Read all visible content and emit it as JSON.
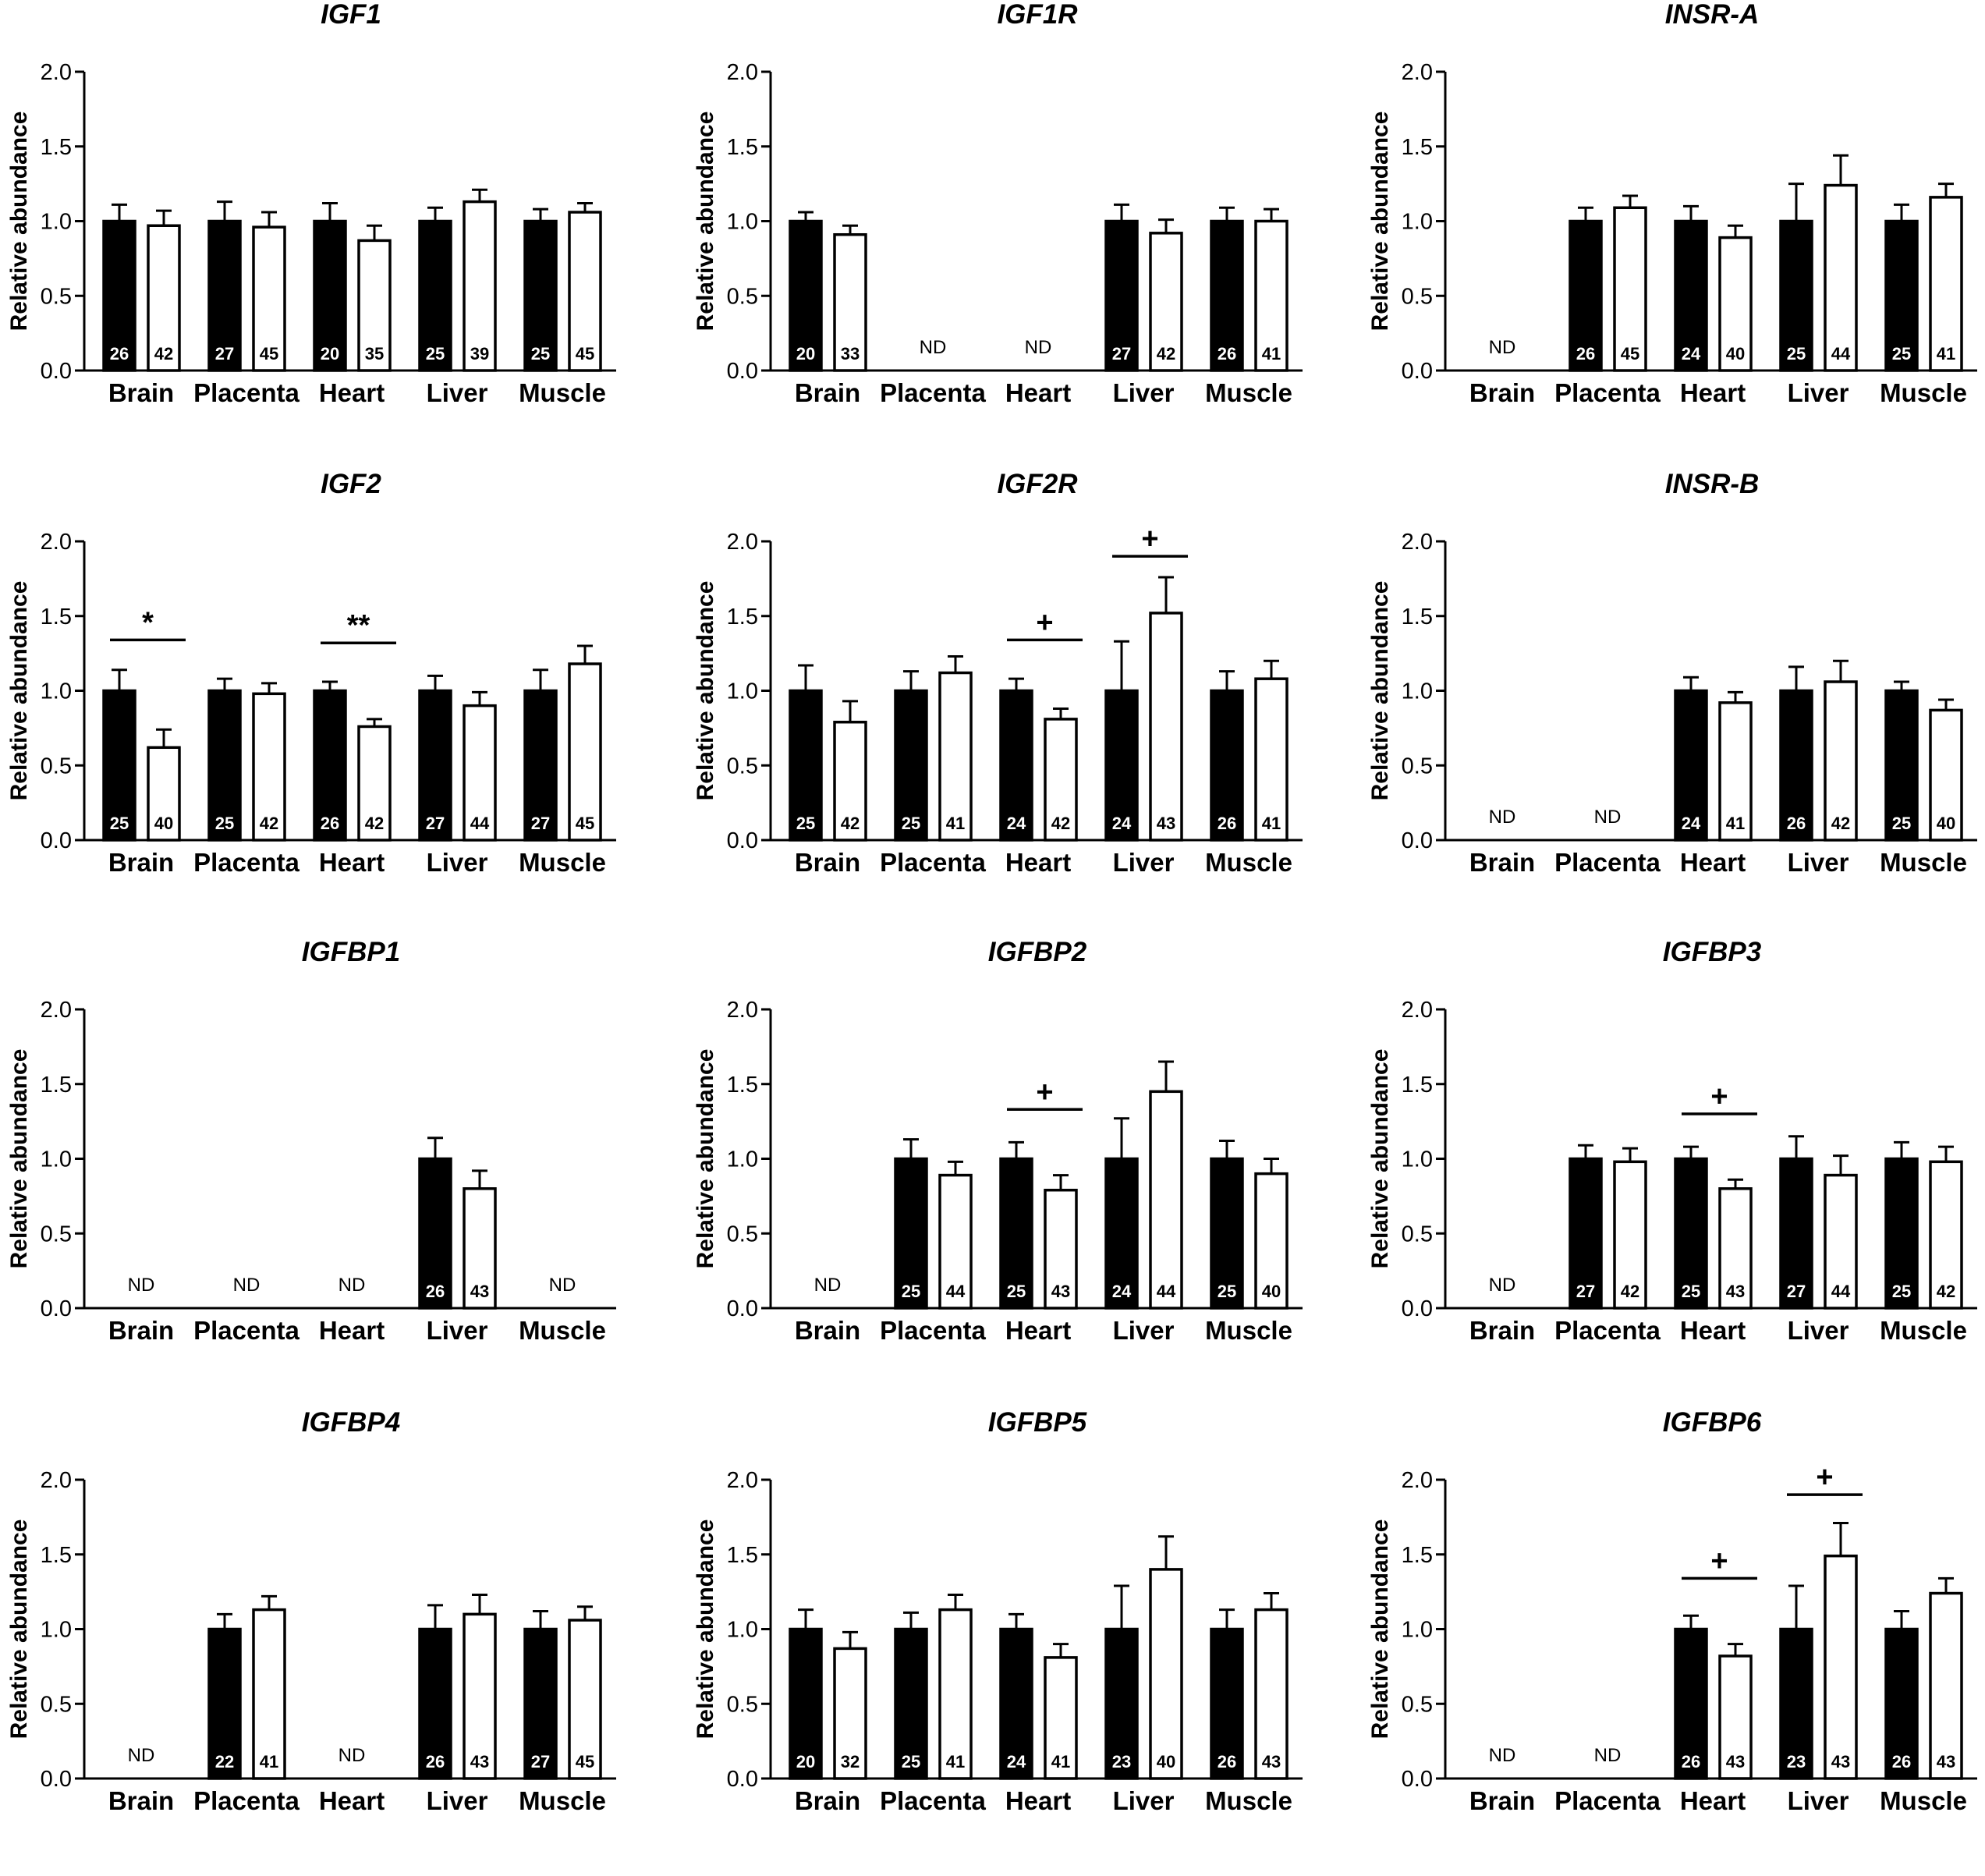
{
  "figure": {
    "y_axis_label": "Relative abundance",
    "tissues": [
      "Brain",
      "Placenta",
      "Heart",
      "Liver",
      "Muscle"
    ],
    "ylim": [
      0,
      2.0
    ],
    "yticks": [
      "0.0",
      "0.5",
      "1.0",
      "1.5",
      "2.0"
    ],
    "not_detected_label": "ND",
    "colors": {
      "group1_fill": "#000000",
      "group2_fill": "#ffffff",
      "axis": "#000000"
    }
  },
  "chart_data": [
    {
      "type": "bar",
      "title": "IGF1",
      "ylabel": "Relative abundance",
      "ylim": [
        0,
        2.0
      ],
      "categories": [
        "Brain",
        "Placenta",
        "Heart",
        "Liver",
        "Muscle"
      ],
      "series": [
        {
          "name": "group 1 (black)",
          "values": [
            1.0,
            1.0,
            1.0,
            1.0,
            1.0
          ],
          "errors": [
            0.11,
            0.13,
            0.12,
            0.09,
            0.08
          ],
          "n": [
            "26",
            "27",
            "20",
            "25",
            "25"
          ]
        },
        {
          "name": "group 2 (white)",
          "values": [
            0.97,
            0.96,
            0.87,
            1.13,
            1.06
          ],
          "errors": [
            0.1,
            0.1,
            0.1,
            0.08,
            0.06
          ],
          "n": [
            "42",
            "45",
            "35",
            "39",
            "45"
          ]
        }
      ],
      "not_detected": [
        false,
        false,
        false,
        false,
        false
      ],
      "significance": [
        "",
        "",
        "",
        "",
        ""
      ]
    },
    {
      "type": "bar",
      "title": "IGF1R",
      "ylabel": "Relative abundance",
      "ylim": [
        0,
        2.0
      ],
      "categories": [
        "Brain",
        "Placenta",
        "Heart",
        "Liver",
        "Muscle"
      ],
      "series": [
        {
          "name": "group 1 (black)",
          "values": [
            1.0,
            0,
            0,
            1.0,
            1.0
          ],
          "errors": [
            0.06,
            0,
            0,
            0.11,
            0.09
          ],
          "n": [
            "20",
            "",
            "",
            "27",
            "26"
          ]
        },
        {
          "name": "group 2 (white)",
          "values": [
            0.91,
            0,
            0,
            0.92,
            1.0
          ],
          "errors": [
            0.06,
            0,
            0,
            0.09,
            0.08
          ],
          "n": [
            "33",
            "",
            "",
            "42",
            "41"
          ]
        }
      ],
      "not_detected": [
        false,
        true,
        true,
        false,
        false
      ],
      "significance": [
        "",
        "",
        "",
        "",
        ""
      ]
    },
    {
      "type": "bar",
      "title": "INSR-A",
      "ylabel": "Relative abundance",
      "ylim": [
        0,
        2.0
      ],
      "categories": [
        "Brain",
        "Placenta",
        "Heart",
        "Liver",
        "Muscle"
      ],
      "series": [
        {
          "name": "group 1 (black)",
          "values": [
            0,
            1.0,
            1.0,
            1.0,
            1.0
          ],
          "errors": [
            0,
            0.09,
            0.1,
            0.25,
            0.11
          ],
          "n": [
            "",
            "26",
            "24",
            "25",
            "25"
          ]
        },
        {
          "name": "group 2 (white)",
          "values": [
            0,
            1.09,
            0.89,
            1.24,
            1.16
          ],
          "errors": [
            0,
            0.08,
            0.08,
            0.2,
            0.09
          ],
          "n": [
            "",
            "45",
            "40",
            "44",
            "41"
          ]
        }
      ],
      "not_detected": [
        true,
        false,
        false,
        false,
        false
      ],
      "significance": [
        "",
        "",
        "",
        "",
        ""
      ]
    },
    {
      "type": "bar",
      "title": "IGF2",
      "ylabel": "Relative abundance",
      "ylim": [
        0,
        2.0
      ],
      "categories": [
        "Brain",
        "Placenta",
        "Heart",
        "Liver",
        "Muscle"
      ],
      "series": [
        {
          "name": "group 1 (black)",
          "values": [
            1.0,
            1.0,
            1.0,
            1.0,
            1.0
          ],
          "errors": [
            0.14,
            0.08,
            0.06,
            0.1,
            0.14
          ],
          "n": [
            "25",
            "25",
            "26",
            "27",
            "27"
          ]
        },
        {
          "name": "group 2 (white)",
          "values": [
            0.62,
            0.98,
            0.76,
            0.9,
            1.18
          ],
          "errors": [
            0.12,
            0.07,
            0.05,
            0.09,
            0.12
          ],
          "n": [
            "40",
            "42",
            "42",
            "44",
            "45"
          ]
        }
      ],
      "not_detected": [
        false,
        false,
        false,
        false,
        false
      ],
      "significance": [
        "*",
        "",
        "**",
        "",
        ""
      ],
      "significance_level": [
        1.34,
        0,
        1.32,
        0,
        0
      ]
    },
    {
      "type": "bar",
      "title": "IGF2R",
      "ylabel": "Relative abundance",
      "ylim": [
        0,
        2.0
      ],
      "categories": [
        "Brain",
        "Placenta",
        "Heart",
        "Liver",
        "Muscle"
      ],
      "series": [
        {
          "name": "group 1 (black)",
          "values": [
            1.0,
            1.0,
            1.0,
            1.0,
            1.0
          ],
          "errors": [
            0.17,
            0.13,
            0.08,
            0.33,
            0.13
          ],
          "n": [
            "25",
            "25",
            "24",
            "24",
            "26"
          ]
        },
        {
          "name": "group 2 (white)",
          "values": [
            0.79,
            1.12,
            0.81,
            1.52,
            1.08
          ],
          "errors": [
            0.14,
            0.11,
            0.07,
            0.24,
            0.12
          ],
          "n": [
            "42",
            "41",
            "42",
            "43",
            "41"
          ]
        }
      ],
      "not_detected": [
        false,
        false,
        false,
        false,
        false
      ],
      "significance": [
        "",
        "",
        "+",
        "+",
        ""
      ],
      "significance_level": [
        0,
        0,
        1.34,
        1.9,
        0
      ]
    },
    {
      "type": "bar",
      "title": "INSR-B",
      "ylabel": "Relative abundance",
      "ylim": [
        0,
        2.0
      ],
      "categories": [
        "Brain",
        "Placenta",
        "Heart",
        "Liver",
        "Muscle"
      ],
      "series": [
        {
          "name": "group 1 (black)",
          "values": [
            0,
            0,
            1.0,
            1.0,
            1.0
          ],
          "errors": [
            0,
            0,
            0.09,
            0.16,
            0.06
          ],
          "n": [
            "",
            "",
            "24",
            "26",
            "25"
          ]
        },
        {
          "name": "group 2 (white)",
          "values": [
            0,
            0,
            0.92,
            1.06,
            0.87
          ],
          "errors": [
            0,
            0,
            0.07,
            0.14,
            0.07
          ],
          "n": [
            "",
            "",
            "41",
            "42",
            "40"
          ]
        }
      ],
      "not_detected": [
        true,
        true,
        false,
        false,
        false
      ],
      "significance": [
        "",
        "",
        "",
        "",
        ""
      ]
    },
    {
      "type": "bar",
      "title": "IGFBP1",
      "ylabel": "Relative abundance",
      "ylim": [
        0,
        2.0
      ],
      "categories": [
        "Brain",
        "Placenta",
        "Heart",
        "Liver",
        "Muscle"
      ],
      "series": [
        {
          "name": "group 1 (black)",
          "values": [
            0,
            0,
            0,
            1.0,
            0
          ],
          "errors": [
            0,
            0,
            0,
            0.14,
            0
          ],
          "n": [
            "",
            "",
            "",
            "26",
            ""
          ]
        },
        {
          "name": "group 2 (white)",
          "values": [
            0,
            0,
            0,
            0.8,
            0
          ],
          "errors": [
            0,
            0,
            0,
            0.12,
            0
          ],
          "n": [
            "",
            "",
            "",
            "43",
            ""
          ]
        }
      ],
      "not_detected": [
        true,
        true,
        true,
        false,
        true
      ],
      "significance": [
        "",
        "",
        "",
        "",
        ""
      ]
    },
    {
      "type": "bar",
      "title": "IGFBP2",
      "ylabel": "Relative abundance",
      "ylim": [
        0,
        2.0
      ],
      "categories": [
        "Brain",
        "Placenta",
        "Heart",
        "Liver",
        "Muscle"
      ],
      "series": [
        {
          "name": "group 1 (black)",
          "values": [
            0,
            1.0,
            1.0,
            1.0,
            1.0
          ],
          "errors": [
            0,
            0.13,
            0.11,
            0.27,
            0.12
          ],
          "n": [
            "",
            "25",
            "25",
            "24",
            "25"
          ]
        },
        {
          "name": "group 2 (white)",
          "values": [
            0,
            0.89,
            0.79,
            1.45,
            0.9
          ],
          "errors": [
            0,
            0.09,
            0.1,
            0.2,
            0.1
          ],
          "n": [
            "",
            "44",
            "43",
            "44",
            "40"
          ]
        }
      ],
      "not_detected": [
        true,
        false,
        false,
        false,
        false
      ],
      "significance": [
        "",
        "",
        "+",
        "",
        ""
      ],
      "significance_level": [
        0,
        0,
        1.33,
        0,
        0
      ]
    },
    {
      "type": "bar",
      "title": "IGFBP3",
      "ylabel": "Relative abundance",
      "ylim": [
        0,
        2.0
      ],
      "categories": [
        "Brain",
        "Placenta",
        "Heart",
        "Liver",
        "Muscle"
      ],
      "series": [
        {
          "name": "group 1 (black)",
          "values": [
            0,
            1.0,
            1.0,
            1.0,
            1.0
          ],
          "errors": [
            0,
            0.09,
            0.08,
            0.15,
            0.11
          ],
          "n": [
            "",
            "27",
            "25",
            "27",
            "25"
          ]
        },
        {
          "name": "group 2 (white)",
          "values": [
            0,
            0.98,
            0.8,
            0.89,
            0.98
          ],
          "errors": [
            0,
            0.09,
            0.06,
            0.13,
            0.1
          ],
          "n": [
            "",
            "42",
            "43",
            "44",
            "42"
          ]
        }
      ],
      "not_detected": [
        true,
        false,
        false,
        false,
        false
      ],
      "significance": [
        "",
        "",
        "+",
        "",
        ""
      ],
      "significance_level": [
        0,
        0,
        1.3,
        0,
        0
      ]
    },
    {
      "type": "bar",
      "title": "IGFBP4",
      "ylabel": "Relative abundance",
      "ylim": [
        0,
        2.0
      ],
      "categories": [
        "Brain",
        "Placenta",
        "Heart",
        "Liver",
        "Muscle"
      ],
      "series": [
        {
          "name": "group 1 (black)",
          "values": [
            0,
            1.0,
            0,
            1.0,
            1.0
          ],
          "errors": [
            0,
            0.1,
            0,
            0.16,
            0.12
          ],
          "n": [
            "",
            "22",
            "",
            "26",
            "27"
          ]
        },
        {
          "name": "group 2 (white)",
          "values": [
            0,
            1.13,
            0,
            1.1,
            1.06
          ],
          "errors": [
            0,
            0.09,
            0,
            0.13,
            0.09
          ],
          "n": [
            "",
            "41",
            "",
            "43",
            "45"
          ]
        }
      ],
      "not_detected": [
        true,
        false,
        true,
        false,
        false
      ],
      "significance": [
        "",
        "",
        "",
        "",
        ""
      ]
    },
    {
      "type": "bar",
      "title": "IGFBP5",
      "ylabel": "Relative abundance",
      "ylim": [
        0,
        2.0
      ],
      "categories": [
        "Brain",
        "Placenta",
        "Heart",
        "Liver",
        "Muscle"
      ],
      "series": [
        {
          "name": "group 1 (black)",
          "values": [
            1.0,
            1.0,
            1.0,
            1.0,
            1.0
          ],
          "errors": [
            0.13,
            0.11,
            0.1,
            0.29,
            0.13
          ],
          "n": [
            "20",
            "25",
            "24",
            "23",
            "26"
          ]
        },
        {
          "name": "group 2 (white)",
          "values": [
            0.87,
            1.13,
            0.81,
            1.4,
            1.13
          ],
          "errors": [
            0.11,
            0.1,
            0.09,
            0.22,
            0.11
          ],
          "n": [
            "32",
            "41",
            "41",
            "40",
            "43"
          ]
        }
      ],
      "not_detected": [
        false,
        false,
        false,
        false,
        false
      ],
      "significance": [
        "",
        "",
        "",
        "",
        ""
      ]
    },
    {
      "type": "bar",
      "title": "IGFBP6",
      "ylabel": "Relative abundance",
      "ylim": [
        0,
        2.0
      ],
      "categories": [
        "Brain",
        "Placenta",
        "Heart",
        "Liver",
        "Muscle"
      ],
      "series": [
        {
          "name": "group 1 (black)",
          "values": [
            0,
            0,
            1.0,
            1.0,
            1.0
          ],
          "errors": [
            0,
            0,
            0.09,
            0.29,
            0.12
          ],
          "n": [
            "",
            "",
            "26",
            "23",
            "26"
          ]
        },
        {
          "name": "group 2 (white)",
          "values": [
            0,
            0,
            0.82,
            1.49,
            1.24
          ],
          "errors": [
            0,
            0,
            0.08,
            0.22,
            0.1
          ],
          "n": [
            "",
            "",
            "43",
            "43",
            "43"
          ]
        }
      ],
      "not_detected": [
        true,
        true,
        false,
        false,
        false
      ],
      "significance": [
        "",
        "",
        "+",
        "+",
        ""
      ],
      "significance_level": [
        0,
        0,
        1.34,
        1.9,
        0
      ]
    }
  ]
}
